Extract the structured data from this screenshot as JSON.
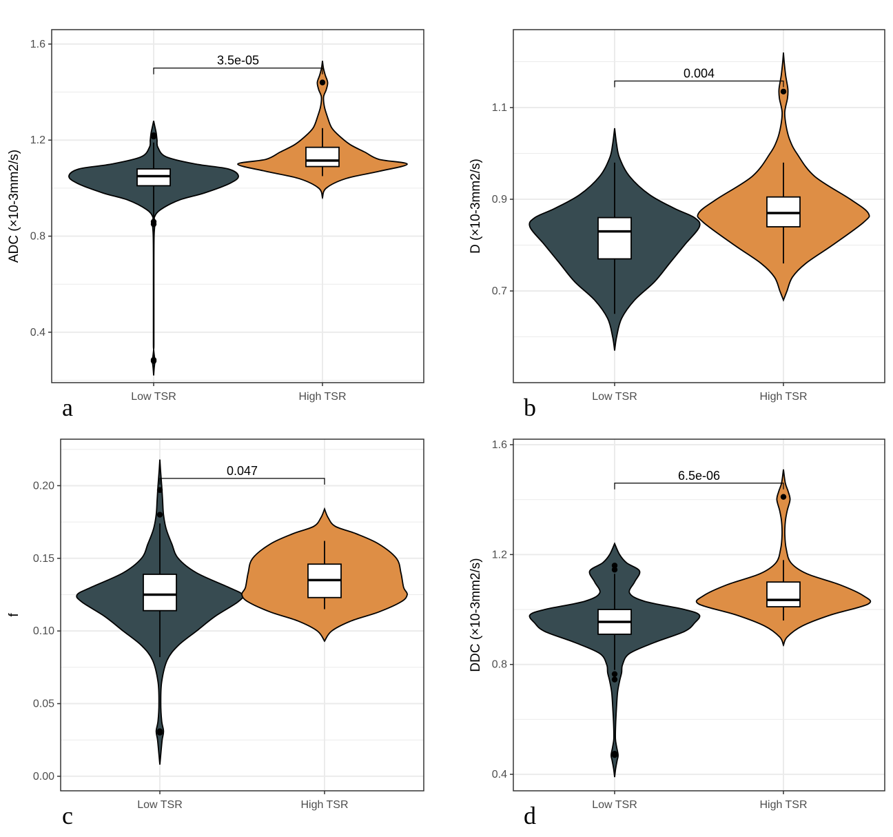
{
  "colors": {
    "low": "#374b51",
    "high": "#de8e45",
    "grid": "#ebebeb",
    "panel_border": "#333333"
  },
  "chart_data": [
    {
      "panel": "a",
      "type": "violin",
      "title": "",
      "xlabel": "",
      "ylabel": "ADC (×10-3mm2/s)",
      "ylim": [
        0.19,
        1.66
      ],
      "yticks": [
        0.4,
        0.8,
        1.2,
        1.6
      ],
      "ytick_labels": [
        "0.4",
        "0.8",
        "1.2",
        "1.6"
      ],
      "categories": [
        "Low TSR",
        "High TSR"
      ],
      "groups": [
        {
          "name": "Low TSR",
          "q1": 1.01,
          "median": 1.05,
          "q3": 1.08,
          "whisker_low": 0.88,
          "whisker_high": 1.19,
          "outliers": [
            1.22,
            1.215,
            0.86,
            0.85,
            0.285,
            0.28
          ],
          "violin_min": 0.22,
          "violin_max": 1.28,
          "density": [
            [
              0.22,
              0.0
            ],
            [
              0.25,
              0.006
            ],
            [
              0.28,
              0.014
            ],
            [
              0.31,
              0.005
            ],
            [
              0.33,
              0.0
            ],
            [
              0.35,
              0.003
            ],
            [
              0.5,
              0.003
            ],
            [
              0.7,
              0.003
            ],
            [
              0.8,
              0.005
            ],
            [
              0.84,
              0.012
            ],
            [
              0.86,
              0.016
            ],
            [
              0.88,
              0.01
            ],
            [
              0.91,
              0.08
            ],
            [
              0.95,
              0.3
            ],
            [
              0.98,
              0.6
            ],
            [
              1.02,
              0.9
            ],
            [
              1.05,
              1.0
            ],
            [
              1.08,
              0.88
            ],
            [
              1.1,
              0.5
            ],
            [
              1.13,
              0.15
            ],
            [
              1.17,
              0.05
            ],
            [
              1.2,
              0.04
            ],
            [
              1.23,
              0.03
            ],
            [
              1.26,
              0.012
            ],
            [
              1.28,
              0.0
            ]
          ]
        },
        {
          "name": "High TSR",
          "q1": 1.09,
          "median": 1.115,
          "q3": 1.17,
          "whisker_low": 1.05,
          "whisker_high": 1.25,
          "outliers": [
            1.44
          ],
          "violin_min": 0.96,
          "violin_max": 1.53,
          "density": [
            [
              0.96,
              0.0
            ],
            [
              1.0,
              0.04
            ],
            [
              1.04,
              0.25
            ],
            [
              1.07,
              0.6
            ],
            [
              1.1,
              0.9
            ],
            [
              1.12,
              0.6
            ],
            [
              1.15,
              0.45
            ],
            [
              1.18,
              0.3
            ],
            [
              1.21,
              0.2
            ],
            [
              1.25,
              0.1
            ],
            [
              1.3,
              0.05
            ],
            [
              1.34,
              0.02
            ],
            [
              1.38,
              0.012
            ],
            [
              1.41,
              0.04
            ],
            [
              1.44,
              0.055
            ],
            [
              1.47,
              0.03
            ],
            [
              1.5,
              0.01
            ],
            [
              1.53,
              0.0
            ]
          ]
        }
      ],
      "comparison": {
        "label": "3.5e-05",
        "y": 1.5
      },
      "panel_label": "a"
    },
    {
      "panel": "b",
      "type": "violin",
      "title": "",
      "xlabel": "",
      "ylabel": "D (×10-3mm2/s)",
      "ylim": [
        0.5,
        1.27
      ],
      "yticks": [
        0.7,
        0.9,
        1.1
      ],
      "ytick_labels": [
        "0.7",
        "0.9",
        "1.1"
      ],
      "categories": [
        "Low TSR",
        "High TSR"
      ],
      "groups": [
        {
          "name": "Low TSR",
          "q1": 0.77,
          "median": 0.83,
          "q3": 0.86,
          "whisker_low": 0.65,
          "whisker_high": 0.98,
          "outliers": [],
          "violin_min": 0.57,
          "violin_max": 1.055,
          "density": [
            [
              0.57,
              0.0
            ],
            [
              0.6,
              0.02
            ],
            [
              0.64,
              0.07
            ],
            [
              0.68,
              0.2
            ],
            [
              0.72,
              0.4
            ],
            [
              0.76,
              0.55
            ],
            [
              0.8,
              0.7
            ],
            [
              0.84,
              0.85
            ],
            [
              0.86,
              0.8
            ],
            [
              0.88,
              0.6
            ],
            [
              0.91,
              0.35
            ],
            [
              0.95,
              0.15
            ],
            [
              0.99,
              0.05
            ],
            [
              1.02,
              0.02
            ],
            [
              1.055,
              0.0
            ]
          ]
        },
        {
          "name": "High TSR",
          "q1": 0.84,
          "median": 0.87,
          "q3": 0.905,
          "whisker_low": 0.76,
          "whisker_high": 0.98,
          "outliers": [
            1.135
          ],
          "violin_min": 0.68,
          "violin_max": 1.22,
          "density": [
            [
              0.68,
              0.0
            ],
            [
              0.7,
              0.04
            ],
            [
              0.73,
              0.1
            ],
            [
              0.76,
              0.25
            ],
            [
              0.8,
              0.55
            ],
            [
              0.85,
              0.9
            ],
            [
              0.87,
              0.95
            ],
            [
              0.9,
              0.75
            ],
            [
              0.95,
              0.35
            ],
            [
              1.0,
              0.15
            ],
            [
              1.03,
              0.07
            ],
            [
              1.06,
              0.03
            ],
            [
              1.09,
              0.015
            ],
            [
              1.12,
              0.045
            ],
            [
              1.14,
              0.05
            ],
            [
              1.17,
              0.025
            ],
            [
              1.2,
              0.008
            ],
            [
              1.22,
              0.0
            ]
          ]
        }
      ],
      "comparison": {
        "label": "0.004",
        "y": 1.158
      },
      "panel_label": "b"
    },
    {
      "panel": "c",
      "type": "violin",
      "title": "",
      "xlabel": "",
      "ylabel": "f",
      "ylim": [
        -0.01,
        0.232
      ],
      "yticks": [
        0.0,
        0.05,
        0.1,
        0.15,
        0.2
      ],
      "ytick_labels": [
        "0.00",
        "0.05",
        "0.10",
        "0.15",
        "0.20"
      ],
      "categories": [
        "Low TSR",
        "High TSR"
      ],
      "groups": [
        {
          "name": "Low TSR",
          "q1": 0.114,
          "median": 0.125,
          "q3": 0.139,
          "whisker_low": 0.082,
          "whisker_high": 0.174,
          "outliers": [
            0.197,
            0.18,
            0.031,
            0.03
          ],
          "violin_min": 0.008,
          "violin_max": 0.218,
          "density": [
            [
              0.008,
              0.0
            ],
            [
              0.015,
              0.01
            ],
            [
              0.025,
              0.025
            ],
            [
              0.031,
              0.04
            ],
            [
              0.038,
              0.02
            ],
            [
              0.05,
              0.01
            ],
            [
              0.065,
              0.02
            ],
            [
              0.08,
              0.08
            ],
            [
              0.09,
              0.2
            ],
            [
              0.1,
              0.4
            ],
            [
              0.11,
              0.6
            ],
            [
              0.12,
              0.85
            ],
            [
              0.125,
              0.9
            ],
            [
              0.13,
              0.75
            ],
            [
              0.14,
              0.4
            ],
            [
              0.15,
              0.2
            ],
            [
              0.16,
              0.13
            ],
            [
              0.17,
              0.07
            ],
            [
              0.18,
              0.04
            ],
            [
              0.19,
              0.03
            ],
            [
              0.2,
              0.02
            ],
            [
              0.21,
              0.008
            ],
            [
              0.218,
              0.0
            ]
          ]
        },
        {
          "name": "High TSR",
          "q1": 0.123,
          "median": 0.135,
          "q3": 0.146,
          "whisker_low": 0.115,
          "whisker_high": 0.162,
          "outliers": [],
          "violin_min": 0.093,
          "violin_max": 0.184,
          "density": [
            [
              0.093,
              0.0
            ],
            [
              0.1,
              0.08
            ],
            [
              0.107,
              0.3
            ],
            [
              0.113,
              0.6
            ],
            [
              0.12,
              0.85
            ],
            [
              0.125,
              0.92
            ],
            [
              0.13,
              0.88
            ],
            [
              0.14,
              0.85
            ],
            [
              0.15,
              0.8
            ],
            [
              0.16,
              0.6
            ],
            [
              0.167,
              0.35
            ],
            [
              0.172,
              0.12
            ],
            [
              0.178,
              0.04
            ],
            [
              0.184,
              0.0
            ]
          ]
        }
      ],
      "comparison": {
        "label": "0.047",
        "y": 0.205
      },
      "panel_label": "c"
    },
    {
      "panel": "d",
      "type": "violin",
      "title": "",
      "xlabel": "",
      "ylabel": "DDC (×10-3mm2/s)",
      "ylim": [
        0.34,
        1.62
      ],
      "yticks": [
        0.4,
        0.8,
        1.2,
        1.6
      ],
      "ytick_labels": [
        "0.4",
        "0.8",
        "1.2",
        "1.6"
      ],
      "categories": [
        "Low TSR",
        "High TSR"
      ],
      "groups": [
        {
          "name": "Low TSR",
          "q1": 0.91,
          "median": 0.955,
          "q3": 1.0,
          "whisker_low": 0.78,
          "whisker_high": 1.13,
          "outliers": [
            1.16,
            1.145,
            0.765,
            0.745,
            0.475,
            0.47
          ],
          "violin_min": 0.39,
          "violin_max": 1.24,
          "density": [
            [
              0.39,
              0.0
            ],
            [
              0.42,
              0.01
            ],
            [
              0.45,
              0.025
            ],
            [
              0.47,
              0.035
            ],
            [
              0.5,
              0.02
            ],
            [
              0.53,
              0.008
            ],
            [
              0.58,
              0.01
            ],
            [
              0.65,
              0.02
            ],
            [
              0.7,
              0.03
            ],
            [
              0.74,
              0.05
            ],
            [
              0.77,
              0.07
            ],
            [
              0.8,
              0.08
            ],
            [
              0.84,
              0.15
            ],
            [
              0.88,
              0.4
            ],
            [
              0.92,
              0.7
            ],
            [
              0.95,
              0.8
            ],
            [
              0.98,
              0.85
            ],
            [
              1.0,
              0.7
            ],
            [
              1.03,
              0.3
            ],
            [
              1.06,
              0.15
            ],
            [
              1.1,
              0.2
            ],
            [
              1.14,
              0.25
            ],
            [
              1.17,
              0.12
            ],
            [
              1.2,
              0.05
            ],
            [
              1.24,
              0.0
            ]
          ]
        },
        {
          "name": "High TSR",
          "q1": 1.01,
          "median": 1.035,
          "q3": 1.1,
          "whisker_low": 0.96,
          "whisker_high": 1.18,
          "outliers": [
            1.41
          ],
          "violin_min": 0.87,
          "violin_max": 1.51,
          "density": [
            [
              0.87,
              0.0
            ],
            [
              0.9,
              0.04
            ],
            [
              0.94,
              0.2
            ],
            [
              0.98,
              0.5
            ],
            [
              1.02,
              0.9
            ],
            [
              1.05,
              0.85
            ],
            [
              1.09,
              0.6
            ],
            [
              1.13,
              0.25
            ],
            [
              1.17,
              0.08
            ],
            [
              1.22,
              0.03
            ],
            [
              1.27,
              0.015
            ],
            [
              1.32,
              0.02
            ],
            [
              1.36,
              0.04
            ],
            [
              1.4,
              0.07
            ],
            [
              1.43,
              0.05
            ],
            [
              1.46,
              0.02
            ],
            [
              1.51,
              0.0
            ]
          ]
        }
      ],
      "comparison": {
        "label": "6.5e-06",
        "y": 1.46
      },
      "panel_label": "d"
    }
  ]
}
